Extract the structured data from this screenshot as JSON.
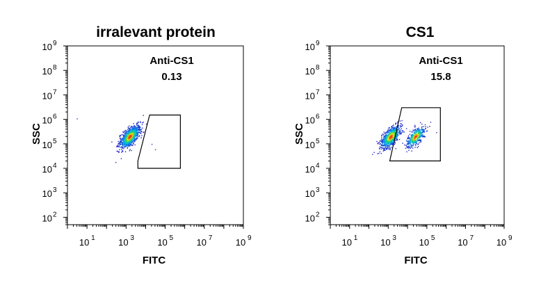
{
  "chart_data": [
    {
      "type": "scatter",
      "title": "irralevant protein",
      "xlabel": "FITC",
      "ylabel": "SSC",
      "xscale": "log",
      "yscale": "log",
      "xlim": [
        1,
        1000000000
      ],
      "ylim": [
        50,
        1000000000
      ],
      "x_tick_labels": [
        "10",
        "10",
        "10",
        "10",
        "10"
      ],
      "x_tick_exponents": [
        "1",
        "3",
        "5",
        "7",
        "9"
      ],
      "y_tick_labels": [
        "10",
        "10",
        "10",
        "10",
        "10",
        "10",
        "10",
        "10"
      ],
      "y_tick_exponents": [
        "2",
        "3",
        "4",
        "5",
        "6",
        "7",
        "8",
        "9"
      ],
      "gate": {
        "label": "Anti-CS1",
        "value": "0.13",
        "vertices": [
          [
            4000,
            20000
          ],
          [
            16000,
            1500000
          ],
          [
            600000,
            1500000
          ],
          [
            600000,
            10000
          ],
          [
            4000,
            10000
          ]
        ]
      },
      "populations": [
        {
          "center": [
            1500,
            200000
          ],
          "spread": [
            0.24,
            0.22
          ],
          "count": 900
        }
      ],
      "outliers": [
        [
          3,
          1100000
        ],
        [
          30000,
          60000
        ],
        [
          20000,
          100000
        ],
        [
          1200,
          500000
        ]
      ]
    },
    {
      "type": "scatter",
      "title": "CS1",
      "xlabel": "FITC",
      "ylabel": "SSC",
      "xscale": "log",
      "yscale": "log",
      "xlim": [
        1,
        1000000000
      ],
      "ylim": [
        50,
        1000000000
      ],
      "x_tick_labels": [
        "10",
        "10",
        "10",
        "10",
        "10"
      ],
      "x_tick_exponents": [
        "1",
        "3",
        "5",
        "7",
        "9"
      ],
      "y_tick_labels": [
        "10",
        "10",
        "10",
        "10",
        "10",
        "10",
        "10",
        "10"
      ],
      "y_tick_exponents": [
        "2",
        "3",
        "4",
        "5",
        "6",
        "7",
        "8",
        "9"
      ],
      "gate": {
        "label": "Anti-CS1",
        "value": "15.8",
        "vertices": [
          [
            1200,
            20000
          ],
          [
            5000,
            3000000
          ],
          [
            500000,
            3000000
          ],
          [
            500000,
            20000
          ]
        ]
      },
      "populations": [
        {
          "center": [
            1300,
            200000
          ],
          "spread": [
            0.24,
            0.22
          ],
          "count": 750
        },
        {
          "center": [
            25000,
            200000
          ],
          "spread": [
            0.22,
            0.2
          ],
          "count": 420
        }
      ],
      "outliers": [
        [
          300000,
          300000
        ],
        [
          150000,
          800000
        ]
      ]
    }
  ]
}
